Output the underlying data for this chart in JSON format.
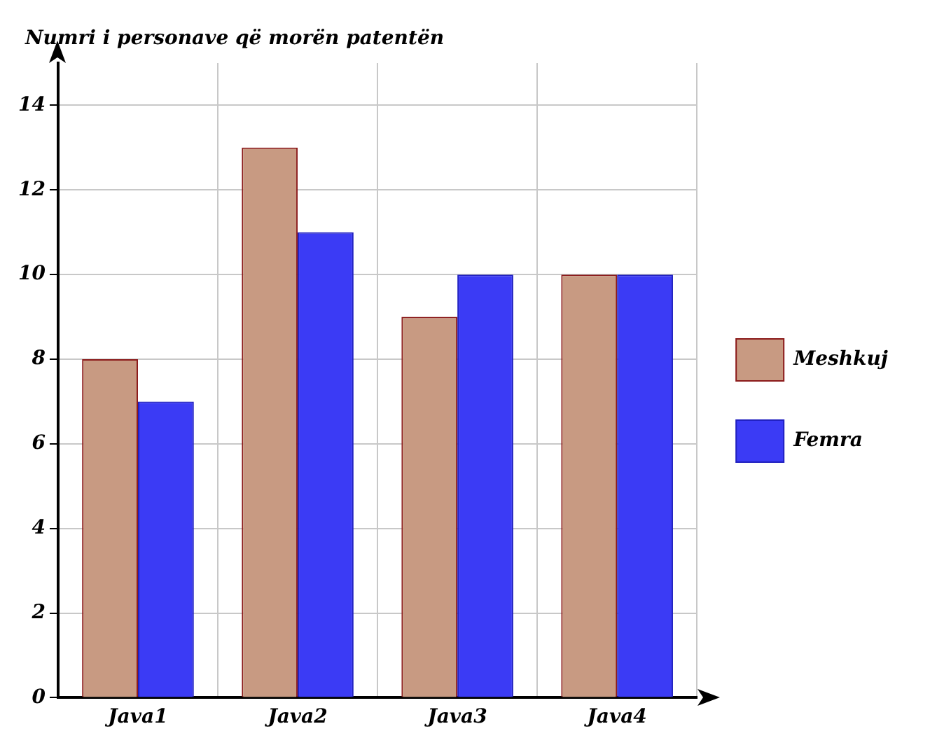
{
  "chart_data": {
    "type": "bar",
    "ylabel": "Numri i personave që morën patentën",
    "categories": [
      "Java1",
      "Java2",
      "Java3",
      "Java4"
    ],
    "series": [
      {
        "name": "Meshkuj",
        "color": "#c89a82",
        "values": [
          8,
          13,
          9,
          10
        ]
      },
      {
        "name": "Femra",
        "color": "#3b3bf5",
        "values": [
          7,
          11,
          10,
          10
        ]
      }
    ],
    "ylim": [
      0,
      15
    ],
    "yticks": [
      0,
      2,
      4,
      6,
      8,
      10,
      12,
      14
    ],
    "grid": true,
    "legend": "right"
  }
}
